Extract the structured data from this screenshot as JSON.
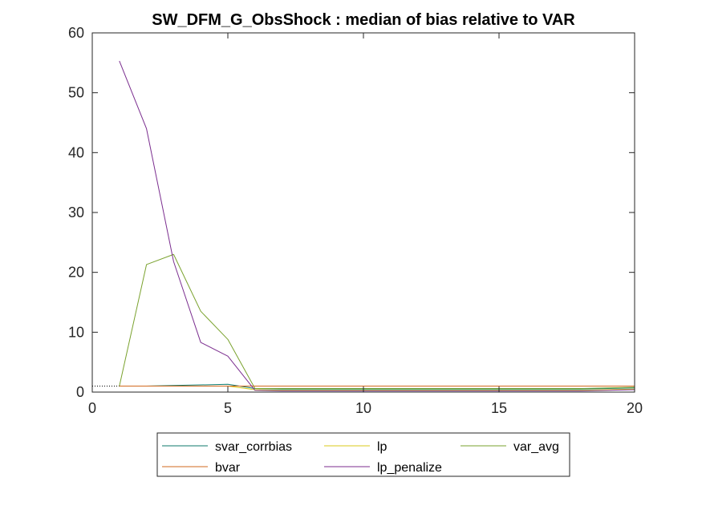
{
  "chart_data": {
    "type": "line",
    "title": "SW_DFM_G_ObsShock : median of bias relative to VAR",
    "xlabel": "",
    "ylabel": "",
    "xlim": [
      0,
      20
    ],
    "ylim": [
      0,
      60
    ],
    "xticks": [
      0,
      5,
      10,
      15,
      20
    ],
    "yticks": [
      0,
      10,
      20,
      30,
      40,
      50,
      60
    ],
    "reference_line": {
      "y": 1,
      "style": "dotted"
    },
    "grid": false,
    "legend_position": "bottom-outside",
    "x": [
      1,
      2,
      3,
      4,
      5,
      6,
      7,
      8,
      9,
      10,
      11,
      12,
      13,
      14,
      15,
      16,
      17,
      18,
      19,
      20
    ],
    "series": [
      {
        "name": "svar_corrbias",
        "color": "#0e7a6b",
        "values": [
          1.0,
          1.0,
          1.1,
          1.2,
          1.3,
          0.6,
          0.5,
          0.5,
          0.5,
          0.5,
          0.5,
          0.5,
          0.5,
          0.5,
          0.5,
          0.5,
          0.5,
          0.5,
          0.6,
          0.7
        ]
      },
      {
        "name": "lp",
        "color": "#d8c81a",
        "values": [
          1.0,
          1.0,
          1.0,
          1.0,
          1.0,
          0.4,
          0.3,
          0.3,
          0.3,
          0.3,
          0.3,
          0.3,
          0.3,
          0.3,
          0.3,
          0.3,
          0.3,
          0.3,
          0.4,
          0.5
        ]
      },
      {
        "name": "var_avg",
        "color": "#7aa22e",
        "values": [
          1.0,
          21.3,
          23.0,
          13.5,
          8.8,
          0.6,
          0.6,
          0.6,
          0.6,
          0.6,
          0.6,
          0.6,
          0.6,
          0.6,
          0.6,
          0.6,
          0.6,
          0.6,
          0.7,
          0.8
        ]
      },
      {
        "name": "bvar",
        "color": "#d2691e",
        "values": [
          1.0,
          1.0,
          1.0,
          1.0,
          1.0,
          1.0,
          1.0,
          1.0,
          1.0,
          1.0,
          1.0,
          1.0,
          1.0,
          1.0,
          1.0,
          1.0,
          1.0,
          1.0,
          1.0,
          1.0
        ]
      },
      {
        "name": "lp_penalize",
        "color": "#7b2e8f",
        "values": [
          55.3,
          44.0,
          21.8,
          8.3,
          6.0,
          0.3,
          0.2,
          0.2,
          0.2,
          0.2,
          0.2,
          0.2,
          0.2,
          0.2,
          0.2,
          0.2,
          0.2,
          0.2,
          0.3,
          0.4
        ]
      }
    ]
  }
}
